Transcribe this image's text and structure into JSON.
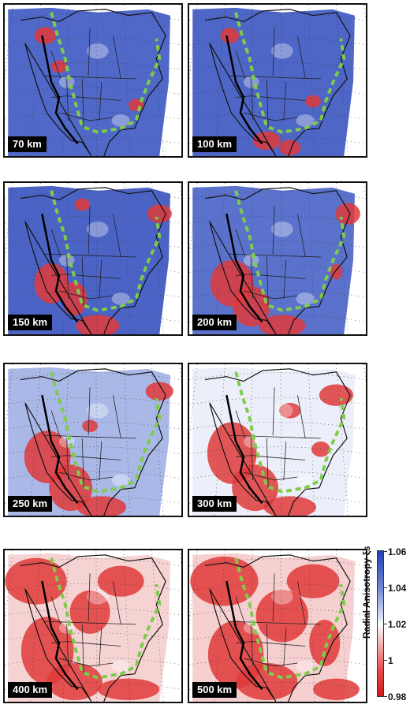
{
  "panels": [
    {
      "depth": "70 km"
    },
    {
      "depth": "100 km"
    },
    {
      "depth": "150 km"
    },
    {
      "depth": "200 km"
    },
    {
      "depth": "250 km"
    },
    {
      "depth": "300 km"
    },
    {
      "depth": "400 km"
    },
    {
      "depth": "500 km"
    }
  ],
  "colorbar": {
    "title": "Radial Anisotropy ξs",
    "ticks": [
      "1.06",
      "1.04",
      "1.02",
      "1",
      "0.98"
    ],
    "colors": {
      "high": "#1f3fb0",
      "neutral": "#ffffff",
      "low": "#cf1b1b"
    }
  }
}
